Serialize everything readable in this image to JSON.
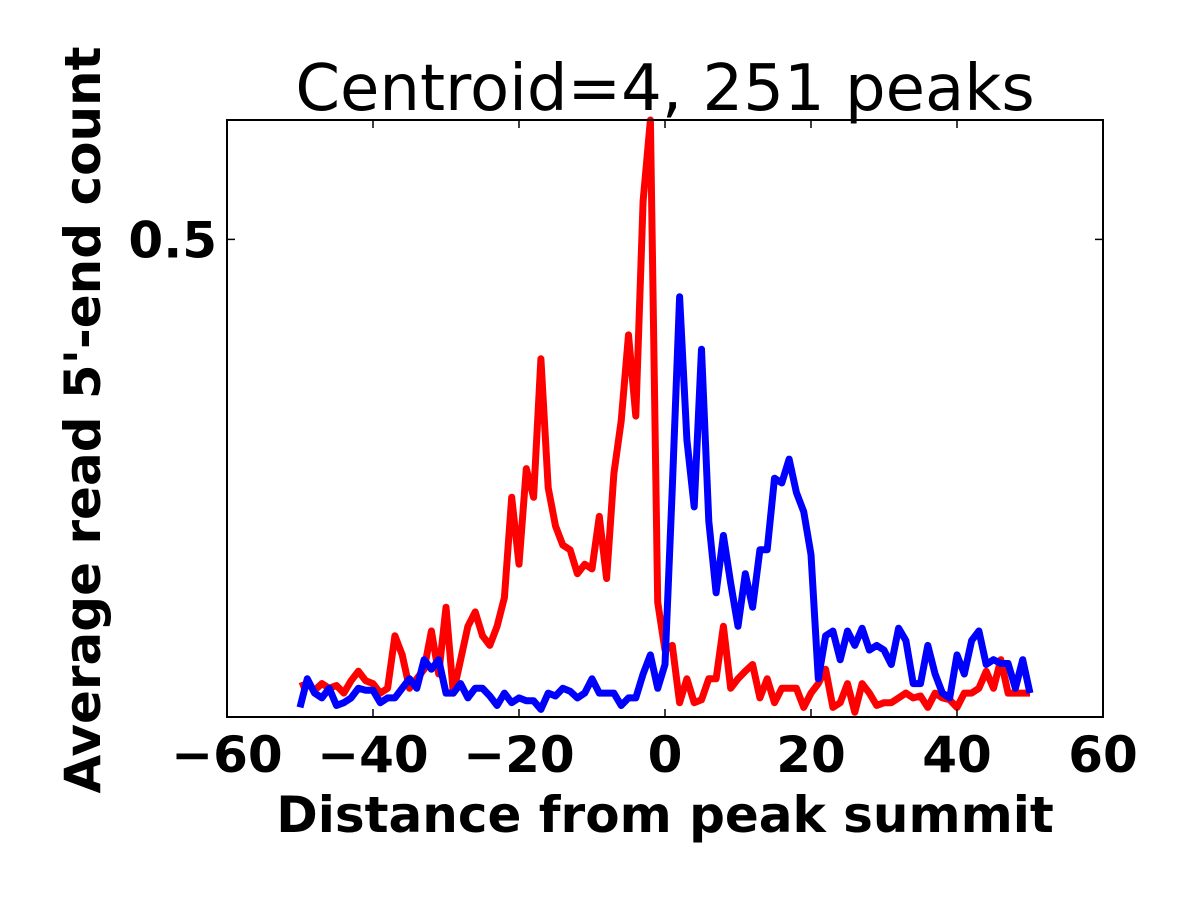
{
  "chart_data": {
    "type": "line",
    "title": "Centroid=4, 251 peaks",
    "xlabel": "Distance from peak summit",
    "ylabel": "Average read 5'-end count",
    "xlim": [
      -60,
      60
    ],
    "ylim": [
      0,
      0.625
    ],
    "xticks": [
      -60,
      -40,
      -20,
      0,
      20,
      40,
      60
    ],
    "xtick_labels": [
      "−60",
      "−40",
      "−20",
      "0",
      "20",
      "40",
      "60"
    ],
    "yticks": [
      0.5
    ],
    "ytick_labels": [
      "0.5"
    ],
    "grid": false,
    "legend": false,
    "series": [
      {
        "color": "#ff0000",
        "x": [
          -50,
          -49,
          -48,
          -47,
          -46,
          -45,
          -44,
          -43,
          -42,
          -41,
          -40,
          -39,
          -38,
          -37,
          -36,
          -35,
          -34,
          -33,
          -32,
          -31,
          -30,
          -29,
          -28,
          -27,
          -26,
          -25,
          -24,
          -23,
          -22,
          -21,
          -20,
          -19,
          -18,
          -17,
          -16,
          -15,
          -14,
          -13,
          -12,
          -11,
          -10,
          -9,
          -8,
          -7,
          -6,
          -5,
          -4,
          -3,
          -2,
          -1,
          0,
          1,
          2,
          3,
          4,
          5,
          6,
          7,
          8,
          9,
          10,
          11,
          12,
          13,
          14,
          15,
          16,
          17,
          18,
          19,
          20,
          21,
          22,
          23,
          24,
          25,
          26,
          27,
          28,
          29,
          30,
          31,
          32,
          33,
          34,
          35,
          36,
          37,
          38,
          39,
          40,
          41,
          42,
          43,
          44,
          45,
          46,
          47,
          48,
          49,
          50
        ],
        "values": [
          0.032,
          0.035,
          0.028,
          0.035,
          0.03,
          0.033,
          0.025,
          0.038,
          0.048,
          0.038,
          0.035,
          0.025,
          0.03,
          0.085,
          0.065,
          0.03,
          0.04,
          0.05,
          0.09,
          0.045,
          0.115,
          0.025,
          0.06,
          0.095,
          0.11,
          0.085,
          0.075,
          0.095,
          0.125,
          0.23,
          0.16,
          0.26,
          0.23,
          0.375,
          0.24,
          0.2,
          0.18,
          0.175,
          0.15,
          0.16,
          0.155,
          0.21,
          0.145,
          0.255,
          0.31,
          0.4,
          0.315,
          0.54,
          0.625,
          0.12,
          0.07,
          0.075,
          0.015,
          0.04,
          0.015,
          0.018,
          0.04,
          0.04,
          0.095,
          0.03,
          0.04,
          0.048,
          0.055,
          0.02,
          0.04,
          0.015,
          0.03,
          0.03,
          0.03,
          0.01,
          0.025,
          0.035,
          0.05,
          0.01,
          0.015,
          0.035,
          0.005,
          0.035,
          0.025,
          0.012,
          0.015,
          0.015,
          0.02,
          0.025,
          0.02,
          0.022,
          0.01,
          0.025,
          0.02,
          0.018,
          0.01,
          0.025,
          0.025,
          0.03,
          0.048,
          0.03,
          0.06,
          0.025,
          0.025,
          0.025,
          0.025
        ]
      },
      {
        "color": "#0000ff",
        "x": [
          -50,
          -49,
          -48,
          -47,
          -46,
          -45,
          -44,
          -43,
          -42,
          -41,
          -40,
          -39,
          -38,
          -37,
          -36,
          -35,
          -34,
          -33,
          -32,
          -31,
          -30,
          -29,
          -28,
          -27,
          -26,
          -25,
          -24,
          -23,
          -22,
          -21,
          -20,
          -19,
          -18,
          -17,
          -16,
          -15,
          -14,
          -13,
          -12,
          -11,
          -10,
          -9,
          -8,
          -7,
          -6,
          -5,
          -4,
          -3,
          -2,
          -1,
          0,
          1,
          2,
          3,
          4,
          5,
          6,
          7,
          8,
          9,
          10,
          11,
          12,
          13,
          14,
          15,
          16,
          17,
          18,
          19,
          20,
          21,
          22,
          23,
          24,
          25,
          26,
          27,
          28,
          29,
          30,
          31,
          32,
          33,
          34,
          35,
          36,
          37,
          38,
          39,
          40,
          41,
          42,
          43,
          44,
          45,
          46,
          47,
          48,
          49,
          50
        ],
        "values": [
          0.01,
          0.04,
          0.025,
          0.02,
          0.03,
          0.012,
          0.015,
          0.02,
          0.03,
          0.028,
          0.028,
          0.015,
          0.02,
          0.02,
          0.03,
          0.04,
          0.03,
          0.06,
          0.05,
          0.06,
          0.025,
          0.025,
          0.035,
          0.02,
          0.03,
          0.03,
          0.022,
          0.012,
          0.025,
          0.015,
          0.02,
          0.017,
          0.017,
          0.008,
          0.025,
          0.022,
          0.03,
          0.027,
          0.02,
          0.025,
          0.04,
          0.025,
          0.025,
          0.025,
          0.012,
          0.02,
          0.02,
          0.045,
          0.065,
          0.03,
          0.055,
          0.24,
          0.44,
          0.29,
          0.22,
          0.385,
          0.205,
          0.13,
          0.19,
          0.14,
          0.095,
          0.15,
          0.115,
          0.175,
          0.175,
          0.25,
          0.245,
          0.27,
          0.235,
          0.215,
          0.17,
          0.04,
          0.085,
          0.09,
          0.06,
          0.09,
          0.075,
          0.093,
          0.07,
          0.075,
          0.07,
          0.055,
          0.093,
          0.08,
          0.035,
          0.035,
          0.075,
          0.045,
          0.025,
          0.02,
          0.065,
          0.045,
          0.08,
          0.09,
          0.055,
          0.06,
          0.056,
          0.056,
          0.03,
          0.06,
          0.025
        ]
      }
    ]
  }
}
